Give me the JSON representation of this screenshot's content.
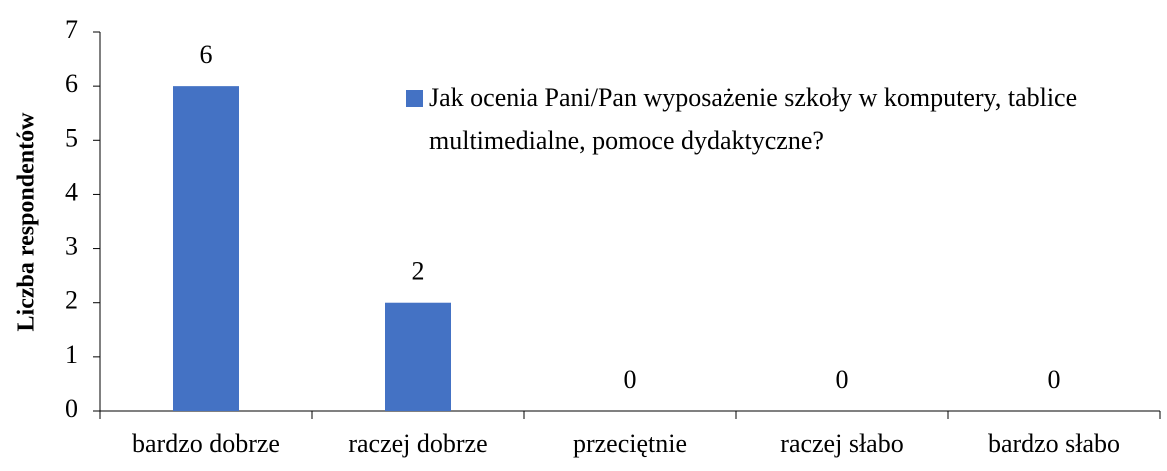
{
  "chart_data": {
    "type": "bar",
    "categories": [
      "bardzo dobrze",
      "raczej dobrze",
      "przeciętnie",
      "raczej słabo",
      "bardzo słabo"
    ],
    "series": [
      {
        "name": "Jak ocenia Pani/Pan wyposażenie szkoły w komputery, tablice multimedialne, pomoce dydaktyczne?",
        "color": "#4472c4",
        "values": [
          6,
          2,
          0,
          0,
          0
        ]
      }
    ],
    "y_label": "Liczba respondentów",
    "ylim": [
      0,
      7
    ],
    "yticks": [
      0,
      1,
      2,
      3,
      4,
      5,
      6,
      7
    ],
    "grid": false,
    "legend": "upper right"
  }
}
